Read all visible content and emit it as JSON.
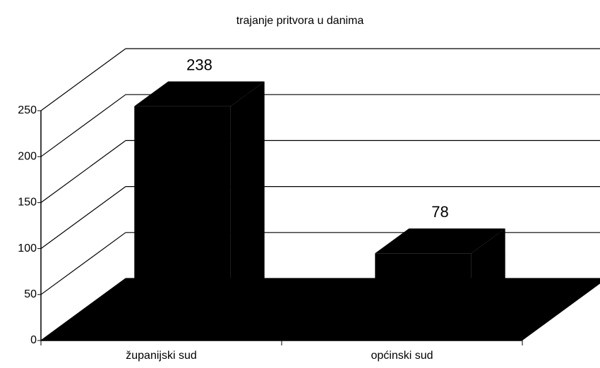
{
  "chart_data": {
    "type": "bar",
    "title": "trajanje pritvora u danima",
    "categories": [
      "županijski sud",
      "općinski sud"
    ],
    "values": [
      238,
      78
    ],
    "color": "#000000",
    "ylim": [
      0,
      250
    ],
    "yticks": [
      0,
      50,
      100,
      150,
      200,
      250
    ],
    "grid": true
  }
}
